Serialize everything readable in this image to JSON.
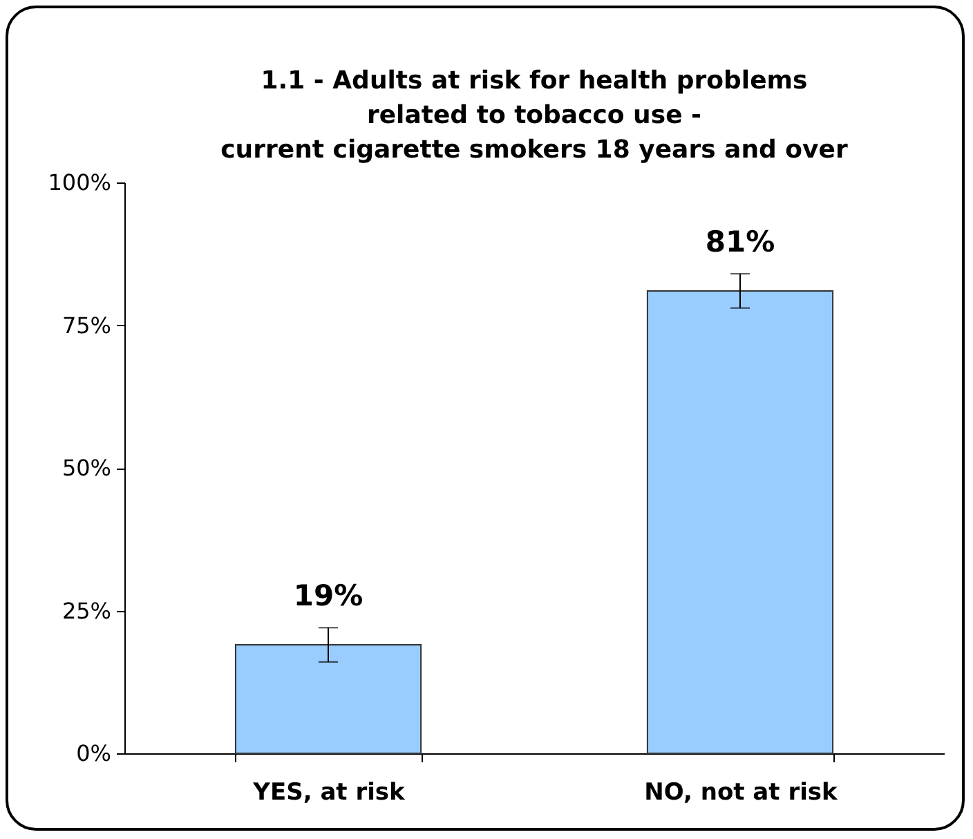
{
  "chart_data": {
    "type": "bar",
    "title": "1.1 - Adults at risk for health problems\nrelated to tobacco use -\ncurrent cigarette smokers 18 years and over",
    "categories": [
      "YES, at risk",
      "NO, not at risk"
    ],
    "values": [
      19,
      81
    ],
    "errors": [
      3,
      3
    ],
    "value_labels": [
      "19%",
      "81%"
    ],
    "color": "#99ccff",
    "ylim": [
      0,
      100
    ],
    "yticks": [
      {
        "value": 0,
        "label": "0%"
      },
      {
        "value": 25,
        "label": "25%"
      },
      {
        "value": 50,
        "label": "50%"
      },
      {
        "value": 75,
        "label": "75%"
      },
      {
        "value": 100,
        "label": "100%"
      }
    ],
    "grid": false
  }
}
